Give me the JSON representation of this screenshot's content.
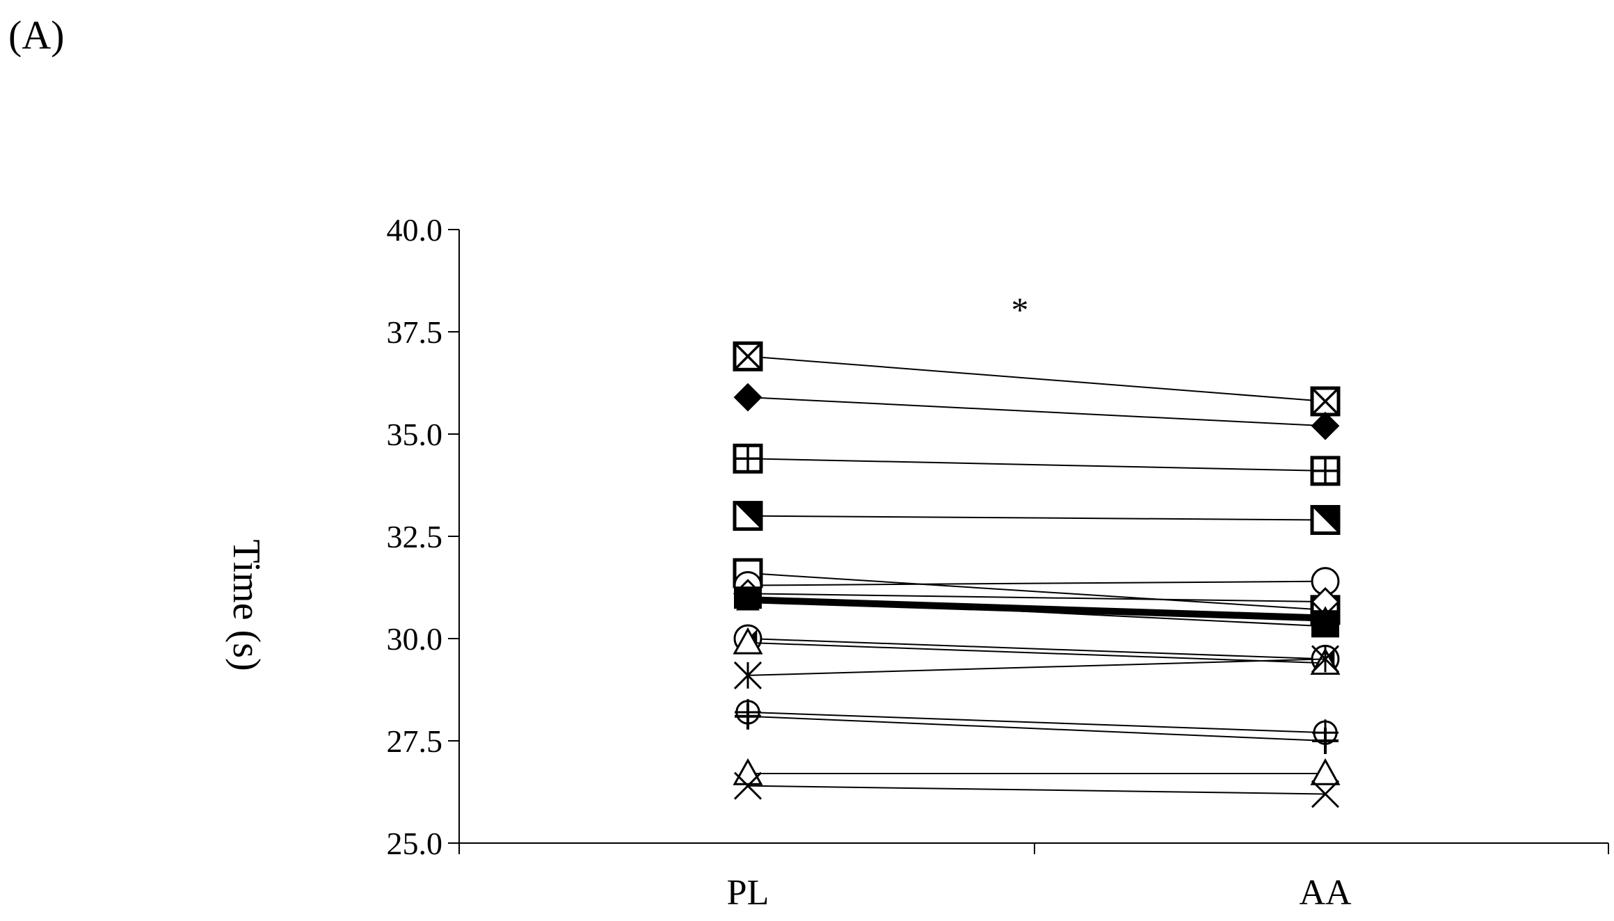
{
  "panel_label": "(A)",
  "chart_data": {
    "type": "line",
    "categories": [
      "PL",
      "AA"
    ],
    "xlabel": "",
    "ylabel": "Time (s)",
    "ylim": [
      25.0,
      40.0
    ],
    "yticks": [
      "25.0",
      "27.5",
      "30.0",
      "32.5",
      "35.0",
      "37.5",
      "40.0"
    ],
    "annotation": "*",
    "grid": false,
    "legend": "none",
    "series": [
      {
        "marker": "square-x",
        "values": [
          36.9,
          35.8
        ]
      },
      {
        "marker": "diamond-filled",
        "values": [
          35.9,
          35.2
        ]
      },
      {
        "marker": "square-plus",
        "values": [
          34.4,
          34.1
        ]
      },
      {
        "marker": "square-slash",
        "values": [
          33.0,
          32.9
        ]
      },
      {
        "marker": "square-open",
        "values": [
          31.6,
          30.7
        ]
      },
      {
        "marker": "circle-open",
        "values": [
          31.3,
          31.4
        ]
      },
      {
        "marker": "diamond-open",
        "values": [
          31.1,
          30.9
        ]
      },
      {
        "marker": "square-filled",
        "values": [
          31.0,
          30.3
        ]
      },
      {
        "marker": "triangle-filled",
        "values": [
          30.9,
          30.5
        ]
      },
      {
        "marker": "mean-bold",
        "values": [
          30.95,
          30.5
        ],
        "bold": true
      },
      {
        "marker": "circle-slash",
        "values": [
          30.0,
          29.5
        ]
      },
      {
        "marker": "triangle-open",
        "values": [
          29.9,
          29.4
        ]
      },
      {
        "marker": "star",
        "values": [
          29.1,
          29.5
        ]
      },
      {
        "marker": "circle-cross",
        "values": [
          28.2,
          27.7
        ]
      },
      {
        "marker": "plus",
        "values": [
          28.1,
          27.5
        ]
      },
      {
        "marker": "triangle-open",
        "values": [
          26.7,
          26.7
        ]
      },
      {
        "marker": "x",
        "values": [
          26.4,
          26.2
        ]
      }
    ]
  }
}
